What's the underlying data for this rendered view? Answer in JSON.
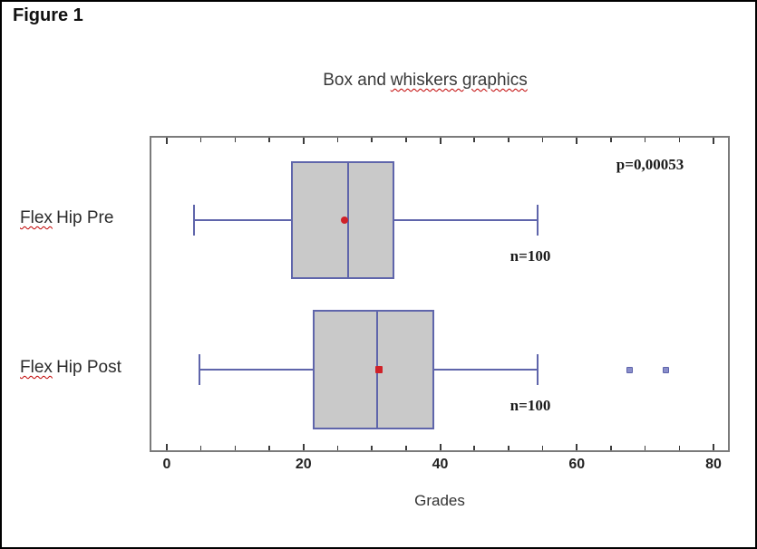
{
  "figure_label": "Figure 1",
  "chart_data": {
    "type": "boxplot",
    "orientation": "horizontal",
    "title": {
      "plain": "Box and",
      "misspelled": "whiskers graphics"
    },
    "xlabel": "Grades",
    "x_ticks": [
      0,
      20,
      40,
      60,
      80
    ],
    "minor_tick_step": 5,
    "x_axis_range_shown": [
      0,
      80
    ],
    "grid": false,
    "annotation": "p=0,00053",
    "series": [
      {
        "label": "Flex Hip Pre",
        "label_parts": {
          "misspelled": "Flex",
          "rest": "Hip Pre"
        },
        "n_label": "n=100",
        "whisker_min": 4,
        "q1": 18.2,
        "median": 26.5,
        "q3": 33.3,
        "whisker_max": 54.2,
        "mean": 26,
        "mean_marker": "circle",
        "outliers": []
      },
      {
        "label": "Flex Hip Post",
        "label_parts": {
          "misspelled": "Flex",
          "rest": "Hip Post"
        },
        "n_label": "n=100",
        "whisker_min": 4.8,
        "q1": 21.3,
        "median": 30.8,
        "q3": 39.2,
        "whisker_max": 54.2,
        "mean": 31.1,
        "mean_marker": "square",
        "outliers": [
          67.7,
          73
        ]
      }
    ]
  },
  "colors": {
    "box_border": "#5f65ab",
    "box_fill": "#c9c9c9",
    "whisker": "#5f65ab",
    "median": "#5f65ab",
    "mean_marker": "#cf2128",
    "outlier_fill": "#8a8ecb",
    "outlier_border": "#5d63aa",
    "plot_border": "#7b7b7b",
    "tick": "#3c3c3c",
    "squiggle": "#c00000"
  }
}
